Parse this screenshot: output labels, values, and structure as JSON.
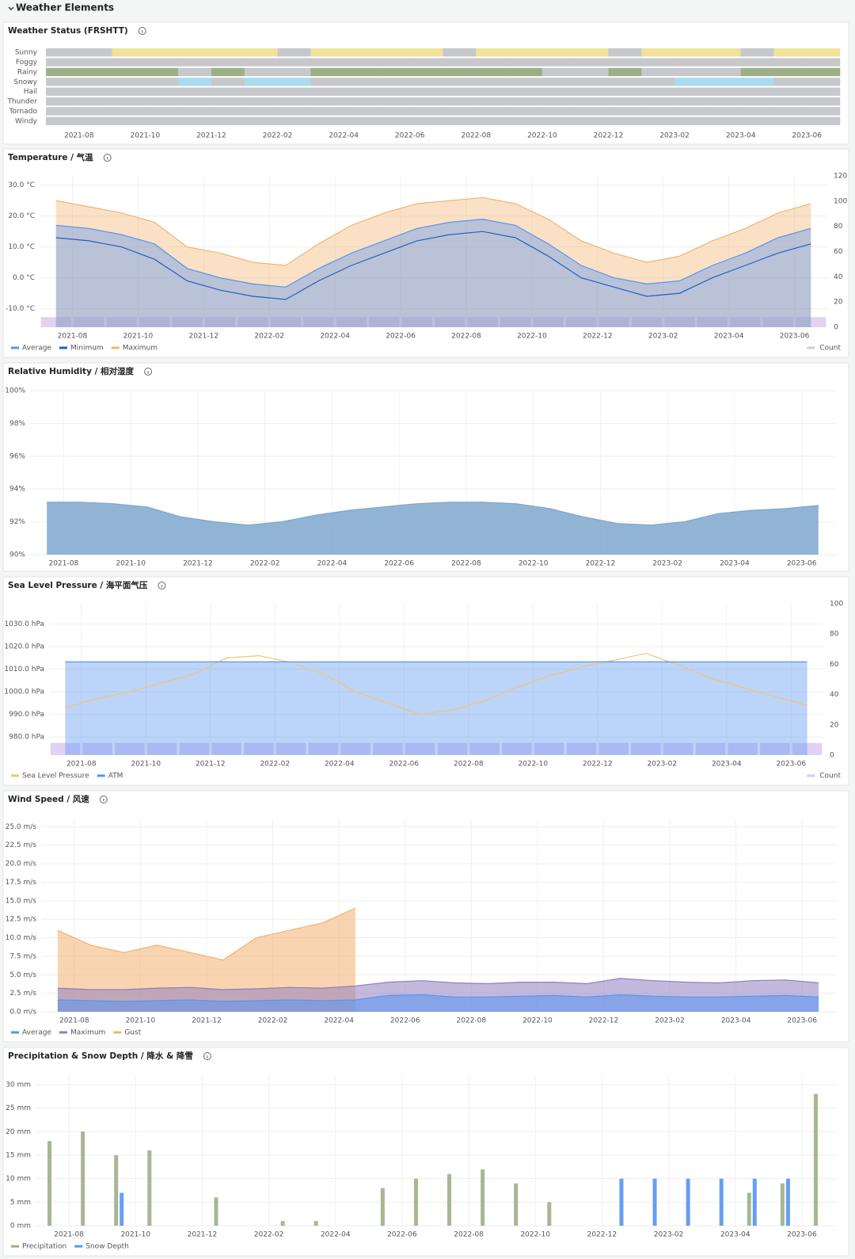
{
  "header": {
    "title": "Weather Elements"
  },
  "chart_data": [
    {
      "type": "state-timeline",
      "title": "Weather Status (FRSHTT)",
      "off_color": "#c7c8cc",
      "x": [
        "2021-07",
        "2021-08",
        "2021-09",
        "2021-10",
        "2021-11",
        "2021-12",
        "2022-01",
        "2022-02",
        "2022-03",
        "2022-04",
        "2022-05",
        "2022-06",
        "2022-07",
        "2022-08",
        "2022-09",
        "2022-10",
        "2022-11",
        "2022-12",
        "2023-01",
        "2023-02",
        "2023-03",
        "2023-04",
        "2023-05",
        "2023-06"
      ],
      "xlim": [
        "2021-07",
        "2023-07"
      ],
      "xticks": [
        "2021-08",
        "2021-10",
        "2021-12",
        "2022-02",
        "2022-04",
        "2022-06",
        "2022-08",
        "2022-10",
        "2022-12",
        "2023-02",
        "2023-04",
        "2023-06"
      ],
      "series": [
        {
          "name": "Sunny",
          "color": "#f1e29b",
          "values": [
            0,
            0,
            1,
            1,
            1,
            1,
            1,
            0,
            1,
            1,
            1,
            1,
            0,
            1,
            1,
            1,
            1,
            0,
            1,
            1,
            1,
            0,
            1,
            1
          ]
        },
        {
          "name": "Foggy",
          "color": "#f1e29b",
          "values": [
            0,
            0,
            0,
            0,
            0,
            0,
            0,
            0,
            0,
            0,
            0,
            0,
            0,
            0,
            0,
            0,
            0,
            0,
            0,
            0,
            0,
            0,
            0,
            0
          ]
        },
        {
          "name": "Rainy",
          "color": "#9caf86",
          "values": [
            1,
            1,
            1,
            1,
            0,
            1,
            0,
            0,
            1,
            1,
            1,
            1,
            1,
            1,
            1,
            0,
            0,
            1,
            0,
            0,
            0,
            1,
            1,
            1
          ]
        },
        {
          "name": "Snowy",
          "color": "#a9dbef",
          "values": [
            0,
            0,
            0,
            0,
            1,
            0,
            1,
            1,
            0,
            0,
            0,
            0,
            0,
            0,
            0,
            0,
            0,
            0,
            0,
            1,
            1,
            1,
            0,
            0
          ]
        },
        {
          "name": "Hail",
          "color": "#a9dbef",
          "values": [
            0,
            0,
            0,
            0,
            0,
            0,
            0,
            0,
            0,
            0,
            0,
            0,
            0,
            0,
            0,
            0,
            0,
            0,
            0,
            0,
            0,
            0,
            0,
            0
          ]
        },
        {
          "name": "Thunder",
          "color": "#f2a65a",
          "values": [
            0,
            0,
            0,
            0,
            0,
            0,
            0,
            0,
            0,
            0,
            0,
            0,
            0,
            0,
            0,
            0,
            0,
            0,
            0,
            0,
            0,
            0,
            0,
            0
          ]
        },
        {
          "name": "Tornado",
          "color": "#e06666",
          "values": [
            0,
            0,
            0,
            0,
            0,
            0,
            0,
            0,
            0,
            0,
            0,
            0,
            0,
            0,
            0,
            0,
            0,
            0,
            0,
            0,
            0,
            0,
            0,
            0
          ]
        },
        {
          "name": "Windy",
          "color": "#b5a8d8",
          "values": [
            0,
            0,
            0,
            0,
            0,
            0,
            0,
            0,
            0,
            0,
            0,
            0,
            0,
            0,
            0,
            0,
            0,
            0,
            0,
            0,
            0,
            0,
            0,
            0
          ]
        }
      ]
    },
    {
      "type": "timeseries",
      "title": "Temperature / 气温",
      "fill_opacity": 0.4,
      "legend": true,
      "grid": true,
      "x": [
        "2021-07",
        "2021-08",
        "2021-09",
        "2021-10",
        "2021-11",
        "2021-12",
        "2022-01",
        "2022-02",
        "2022-03",
        "2022-04",
        "2022-05",
        "2022-06",
        "2022-07",
        "2022-08",
        "2022-09",
        "2022-10",
        "2022-11",
        "2022-12",
        "2023-01",
        "2023-02",
        "2023-03",
        "2023-04",
        "2023-05",
        "2023-06"
      ],
      "xlim": [
        "2021-07",
        "2023-07"
      ],
      "xticks": [
        "2021-08",
        "2021-10",
        "2021-12",
        "2022-02",
        "2022-04",
        "2022-06",
        "2022-08",
        "2022-10",
        "2022-12",
        "2023-02",
        "2023-04",
        "2023-06"
      ],
      "ylim": [
        -16,
        33
      ],
      "yticks": [
        {
          "value": -10,
          "label": "-10.0 °C"
        },
        {
          "value": 0,
          "label": "0.0 °C"
        },
        {
          "value": 10,
          "label": "10.0 °C"
        },
        {
          "value": 20,
          "label": "20.0 °C"
        },
        {
          "value": 30,
          "label": "30.0 °C"
        }
      ],
      "y2lim": [
        0,
        120
      ],
      "y2ticks": [
        0,
        20,
        40,
        60,
        80,
        100,
        120
      ],
      "series": [
        {
          "name": "Average",
          "color": "#5794f2",
          "draw": "area",
          "values": [
            17,
            16,
            14,
            11,
            3,
            0,
            -2,
            -3,
            3,
            8,
            12,
            16,
            18,
            19,
            17,
            11,
            4,
            0,
            -2,
            -1,
            4,
            8,
            13,
            16
          ]
        },
        {
          "name": "Minimum",
          "color": "#1f60c4",
          "draw": "line",
          "values": [
            13,
            12,
            10,
            6,
            -1,
            -4,
            -6,
            -7,
            -1,
            4,
            8,
            12,
            14,
            15,
            13,
            7,
            0,
            -3,
            -6,
            -5,
            0,
            4,
            8,
            11
          ]
        },
        {
          "name": "Maximum",
          "color": "#f2b36f",
          "draw": "area",
          "values": [
            25,
            23,
            21,
            18,
            10,
            8,
            5,
            4,
            11,
            17,
            21,
            24,
            25,
            26,
            24,
            19,
            12,
            8,
            5,
            7,
            12,
            16,
            21,
            24
          ]
        },
        {
          "name": "Count",
          "color": "#d9c7f0",
          "draw": "bars",
          "axis": "y2",
          "values": [
            8,
            8,
            8,
            8,
            8,
            8,
            8,
            8,
            8,
            8,
            8,
            8,
            8,
            8,
            8,
            8,
            8,
            8,
            8,
            8,
            8,
            8,
            8,
            8
          ]
        }
      ]
    },
    {
      "type": "timeseries",
      "title": "Relative Humidity / 相对湿度",
      "fill_opacity": 0.85,
      "legend": false,
      "grid": true,
      "x": [
        "2021-07",
        "2021-08",
        "2021-09",
        "2021-10",
        "2021-11",
        "2021-12",
        "2022-01",
        "2022-02",
        "2022-03",
        "2022-04",
        "2022-05",
        "2022-06",
        "2022-07",
        "2022-08",
        "2022-09",
        "2022-10",
        "2022-11",
        "2022-12",
        "2023-01",
        "2023-02",
        "2023-03",
        "2023-04",
        "2023-05",
        "2023-06"
      ],
      "xlim": [
        "2021-07",
        "2023-07"
      ],
      "xticks": [
        "2021-08",
        "2021-10",
        "2021-12",
        "2022-02",
        "2022-04",
        "2022-06",
        "2022-08",
        "2022-10",
        "2022-12",
        "2023-02",
        "2023-04",
        "2023-06"
      ],
      "ylim": [
        90,
        100
      ],
      "yticks": [
        {
          "value": 90,
          "label": "90%"
        },
        {
          "value": 92,
          "label": "92%"
        },
        {
          "value": 94,
          "label": "94%"
        },
        {
          "value": 96,
          "label": "96%"
        },
        {
          "value": 98,
          "label": "98%"
        },
        {
          "value": 100,
          "label": "100%"
        }
      ],
      "series": [
        {
          "name": "Relative Humidity",
          "color": "#7ea7cc",
          "draw": "area",
          "values": [
            93.2,
            93.2,
            93.1,
            92.9,
            92.3,
            92.0,
            91.8,
            92.0,
            92.4,
            92.7,
            92.9,
            93.1,
            93.2,
            93.2,
            93.1,
            92.8,
            92.3,
            91.9,
            91.8,
            92.0,
            92.5,
            92.7,
            92.8,
            93.0
          ]
        }
      ]
    },
    {
      "type": "timeseries",
      "title": "Sea Level Pressure / 海平面气压",
      "fill_opacity": 0.4,
      "legend": true,
      "grid": true,
      "x": [
        "2021-07",
        "2021-08",
        "2021-09",
        "2021-10",
        "2021-11",
        "2021-12",
        "2022-01",
        "2022-02",
        "2022-03",
        "2022-04",
        "2022-05",
        "2022-06",
        "2022-07",
        "2022-08",
        "2022-09",
        "2022-10",
        "2022-11",
        "2022-12",
        "2023-01",
        "2023-02",
        "2023-03",
        "2023-04",
        "2023-05",
        "2023-06"
      ],
      "xlim": [
        "2021-07",
        "2023-07"
      ],
      "xticks": [
        "2021-08",
        "2021-10",
        "2021-12",
        "2022-02",
        "2022-04",
        "2022-06",
        "2022-08",
        "2022-10",
        "2022-12",
        "2023-02",
        "2023-04",
        "2023-06"
      ],
      "ylim": [
        972,
        1039
      ],
      "yticks": [
        {
          "value": 980,
          "label": "980.0 hPa"
        },
        {
          "value": 990,
          "label": "990.0 hPa"
        },
        {
          "value": 1000,
          "label": "1000.0 hPa"
        },
        {
          "value": 1010,
          "label": "1010.0 hPa"
        },
        {
          "value": 1020,
          "label": "1020.0 hPa"
        },
        {
          "value": 1030,
          "label": "1030.0 hPa"
        }
      ],
      "y2lim": [
        0,
        100
      ],
      "y2ticks": [
        0,
        20,
        40,
        60,
        80,
        100
      ],
      "series": [
        {
          "name": "Sea Level Pressure",
          "color": "#f2c46d",
          "draw": "line",
          "values": [
            993,
            997,
            1000,
            1004,
            1008,
            1015,
            1016,
            1013,
            1008,
            1000,
            995,
            990,
            992,
            996,
            1002,
            1007,
            1011,
            1014,
            1017,
            1012,
            1006,
            1002,
            998,
            994
          ]
        },
        {
          "name": "ATM",
          "color": "#5794f2",
          "draw": "area",
          "values": [
            1013.25,
            1013.25,
            1013.25,
            1013.25,
            1013.25,
            1013.25,
            1013.25,
            1013.25,
            1013.25,
            1013.25,
            1013.25,
            1013.25,
            1013.25,
            1013.25,
            1013.25,
            1013.25,
            1013.25,
            1013.25,
            1013.25,
            1013.25,
            1013.25,
            1013.25,
            1013.25,
            1013.25
          ]
        },
        {
          "name": "Count",
          "color": "#d9c7f0",
          "draw": "bars",
          "axis": "y2",
          "values": [
            8,
            8,
            8,
            8,
            8,
            8,
            8,
            8,
            8,
            8,
            8,
            8,
            8,
            8,
            8,
            8,
            8,
            8,
            8,
            8,
            8,
            8,
            8,
            8
          ]
        }
      ]
    },
    {
      "type": "timeseries",
      "title": "Wind Speed / 风速",
      "fill_opacity": 0.55,
      "legend": true,
      "grid": true,
      "x": [
        "2021-07",
        "2021-08",
        "2021-09",
        "2021-10",
        "2021-11",
        "2021-12",
        "2022-01",
        "2022-02",
        "2022-03",
        "2022-04",
        "2022-05",
        "2022-06",
        "2022-07",
        "2022-08",
        "2022-09",
        "2022-10",
        "2022-11",
        "2022-12",
        "2023-01",
        "2023-02",
        "2023-03",
        "2023-04",
        "2023-05",
        "2023-06"
      ],
      "xlim": [
        "2021-07",
        "2023-07"
      ],
      "xticks": [
        "2021-08",
        "2021-10",
        "2021-12",
        "2022-02",
        "2022-04",
        "2022-06",
        "2022-08",
        "2022-10",
        "2022-12",
        "2023-02",
        "2023-04",
        "2023-06"
      ],
      "ylim": [
        0,
        26
      ],
      "yticks": [
        {
          "value": 0,
          "label": "0.0 m/s"
        },
        {
          "value": 2.5,
          "label": "2.5 m/s"
        },
        {
          "value": 5,
          "label": "5.0 m/s"
        },
        {
          "value": 7.5,
          "label": "7.5 m/s"
        },
        {
          "value": 10,
          "label": "10.0 m/s"
        },
        {
          "value": 12.5,
          "label": "12.5 m/s"
        },
        {
          "value": 15,
          "label": "15.0 m/s"
        },
        {
          "value": 17.5,
          "label": "17.5 m/s"
        },
        {
          "value": 20,
          "label": "20.0 m/s"
        },
        {
          "value": 22.5,
          "label": "22.5 m/s"
        },
        {
          "value": 25,
          "label": "25.0 m/s"
        }
      ],
      "series": [
        {
          "name": "Average",
          "color": "#5794f2",
          "draw": "area",
          "values": [
            1.6,
            1.5,
            1.4,
            1.5,
            1.6,
            1.4,
            1.5,
            1.6,
            1.5,
            1.6,
            2.2,
            2.3,
            2.0,
            2.0,
            2.1,
            2.2,
            2.0,
            2.3,
            2.1,
            2.0,
            2.0,
            2.1,
            2.2,
            2.0
          ]
        },
        {
          "name": "Maximum",
          "color": "#8f7fc0",
          "draw": "area",
          "values": [
            3.2,
            3.0,
            3.0,
            3.2,
            3.3,
            3.0,
            3.1,
            3.3,
            3.2,
            3.5,
            4.0,
            4.2,
            3.9,
            3.8,
            4.0,
            4.0,
            3.8,
            4.5,
            4.2,
            4.0,
            3.9,
            4.2,
            4.3,
            3.9
          ]
        },
        {
          "name": "Gust",
          "color": "#f2b36f",
          "draw": "area",
          "values": [
            11,
            9,
            8,
            9,
            8,
            7,
            10,
            11,
            12,
            14,
            null,
            null,
            null,
            null,
            null,
            null,
            null,
            null,
            null,
            null,
            null,
            null,
            null,
            null
          ]
        }
      ]
    },
    {
      "type": "timeseries",
      "title": "Precipitation & Snow Depth / 降水 & 降雪",
      "fill_opacity": 0.9,
      "legend": true,
      "grid": true,
      "x": [
        "2021-07",
        "2021-08",
        "2021-09",
        "2021-10",
        "2021-11",
        "2021-12",
        "2022-01",
        "2022-02",
        "2022-03",
        "2022-04",
        "2022-05",
        "2022-06",
        "2022-07",
        "2022-08",
        "2022-09",
        "2022-10",
        "2022-11",
        "2022-12",
        "2023-01",
        "2023-02",
        "2023-03",
        "2023-04",
        "2023-05",
        "2023-06"
      ],
      "xlim": [
        "2021-07",
        "2023-07"
      ],
      "xticks": [
        "2021-08",
        "2021-10",
        "2021-12",
        "2022-02",
        "2022-04",
        "2022-06",
        "2022-08",
        "2022-10",
        "2022-12",
        "2023-02",
        "2023-04",
        "2023-06"
      ],
      "ylim": [
        0,
        32
      ],
      "yticks": [
        {
          "value": 0,
          "label": "0 mm"
        },
        {
          "value": 5,
          "label": "5 mm"
        },
        {
          "value": 10,
          "label": "10 mm"
        },
        {
          "value": 15,
          "label": "15 mm"
        },
        {
          "value": 20,
          "label": "20 mm"
        },
        {
          "value": 25,
          "label": "25 mm"
        },
        {
          "value": 30,
          "label": "30 mm"
        }
      ],
      "series": [
        {
          "name": "Precipitation",
          "color": "#9caf86",
          "draw": "bars",
          "values": [
            18,
            20,
            15,
            16,
            0,
            6,
            0,
            1,
            1,
            0,
            8,
            10,
            11,
            12,
            9,
            5,
            0,
            0,
            0,
            0,
            0,
            7,
            9,
            28
          ]
        },
        {
          "name": "Snow Depth",
          "color": "#5794f2",
          "draw": "bars",
          "values": [
            0,
            0,
            7,
            0,
            0,
            0,
            0,
            0,
            0,
            0,
            0,
            0,
            0,
            0,
            0,
            0,
            0,
            10,
            10,
            10,
            10,
            10,
            10,
            0
          ]
        }
      ]
    }
  ]
}
